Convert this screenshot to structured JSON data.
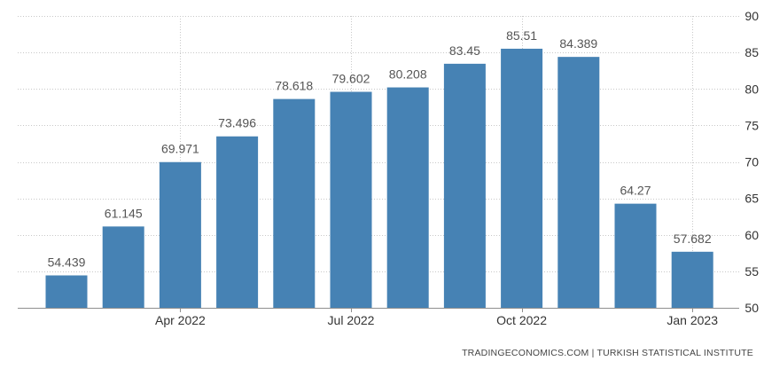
{
  "chart_data": {
    "type": "bar",
    "categories": [
      "Feb 2022",
      "Mar 2022",
      "Apr 2022",
      "May 2022",
      "Jun 2022",
      "Jul 2022",
      "Aug 2022",
      "Sep 2022",
      "Oct 2022",
      "Nov 2022",
      "Dec 2022",
      "Jan 2023"
    ],
    "values": [
      54.439,
      61.145,
      69.971,
      73.496,
      78.618,
      79.602,
      80.208,
      83.45,
      85.51,
      84.389,
      64.27,
      57.682
    ],
    "value_labels": [
      "54.439",
      "61.145",
      "69.971",
      "73.496",
      "78.618",
      "79.602",
      "80.208",
      "83.45",
      "85.51",
      "84.389",
      "64.27",
      "57.682"
    ],
    "x_tick_labels": [
      {
        "category": "Apr 2022",
        "label": "Apr 2022"
      },
      {
        "category": "Jul 2022",
        "label": "Jul 2022"
      },
      {
        "category": "Oct 2022",
        "label": "Oct 2022"
      },
      {
        "category": "Jan 2023",
        "label": "Jan 2023"
      }
    ],
    "y_ticks": [
      50,
      55,
      60,
      65,
      70,
      75,
      80,
      85,
      90
    ],
    "ylim": [
      50,
      90
    ],
    "grid": true,
    "y_axis_side": "right",
    "bar_color": "#4682b4",
    "title": "",
    "xlabel": "",
    "ylabel": ""
  },
  "source": "TRADINGECONOMICS.COM | TURKISH STATISTICAL INSTITUTE"
}
